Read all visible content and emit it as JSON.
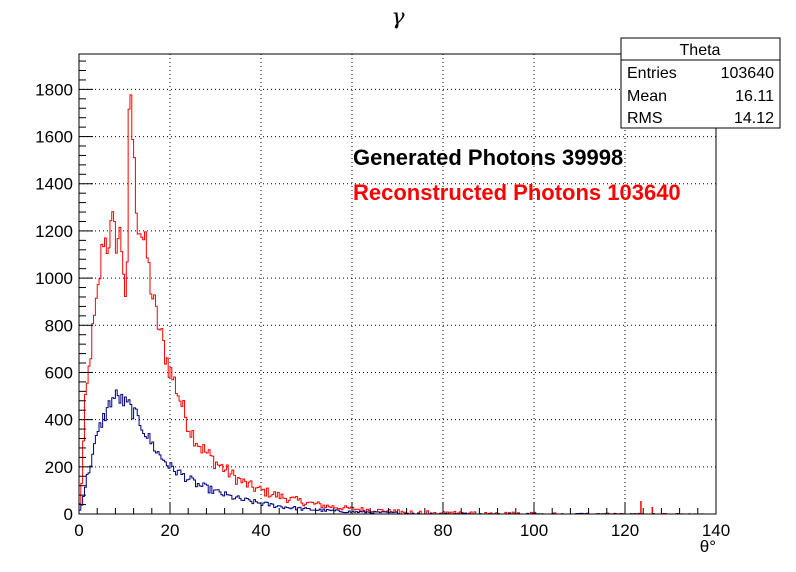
{
  "chart_data": {
    "type": "histogram",
    "title": "γ",
    "xlabel": "θ°",
    "ylabel": "",
    "xlim": [
      0,
      140
    ],
    "ylim": [
      0,
      1950
    ],
    "x_ticks": [
      0,
      20,
      40,
      60,
      80,
      100,
      120,
      140
    ],
    "y_ticks": [
      0,
      200,
      400,
      600,
      800,
      1000,
      1200,
      1400,
      1600,
      1800
    ],
    "grid": true,
    "bin_width": 0.4,
    "series": [
      {
        "name": "Reconstructed Photons 103640",
        "color": "#ff0000",
        "points": [
          [
            0,
            0
          ],
          [
            0.5,
            100
          ],
          [
            1,
            300
          ],
          [
            1.5,
            500
          ],
          [
            2,
            560
          ],
          [
            2.5,
            680
          ],
          [
            3,
            760
          ],
          [
            4,
            900
          ],
          [
            5,
            1100
          ],
          [
            5.5,
            1200
          ],
          [
            6,
            1130
          ],
          [
            7,
            1200
          ],
          [
            7.5,
            1230
          ],
          [
            8,
            1160
          ],
          [
            9,
            1180
          ],
          [
            9.5,
            1120
          ],
          [
            10,
            1000
          ],
          [
            10.5,
            850
          ],
          [
            11,
            1650
          ],
          [
            11.3,
            1840
          ],
          [
            11.8,
            1600
          ],
          [
            12.5,
            1350
          ],
          [
            13,
            1240
          ],
          [
            14,
            1180
          ],
          [
            15,
            1090
          ],
          [
            16,
            940
          ],
          [
            17,
            840
          ],
          [
            18,
            760
          ],
          [
            19,
            680
          ],
          [
            20,
            610
          ],
          [
            21,
            560
          ],
          [
            22,
            500
          ],
          [
            23,
            440
          ],
          [
            24,
            380
          ],
          [
            25,
            340
          ],
          [
            26,
            310
          ],
          [
            27,
            280
          ],
          [
            28,
            260
          ],
          [
            30,
            220
          ],
          [
            32,
            190
          ],
          [
            34,
            160
          ],
          [
            36,
            135
          ],
          [
            38,
            115
          ],
          [
            40,
            100
          ],
          [
            43,
            82
          ],
          [
            46,
            65
          ],
          [
            50,
            48
          ],
          [
            55,
            32
          ],
          [
            60,
            22
          ],
          [
            65,
            16
          ],
          [
            70,
            11
          ],
          [
            80,
            7
          ],
          [
            90,
            5
          ],
          [
            100,
            3
          ],
          [
            110,
            2
          ],
          [
            120,
            1
          ],
          [
            130,
            1
          ],
          [
            140,
            0
          ]
        ],
        "spikes": [
          [
            123.5,
            55
          ],
          [
            126,
            30
          ]
        ]
      },
      {
        "name": "Generated Photons 39998",
        "color": "#000080",
        "points": [
          [
            0,
            0
          ],
          [
            0.5,
            40
          ],
          [
            1,
            80
          ],
          [
            1.5,
            130
          ],
          [
            2,
            170
          ],
          [
            3,
            250
          ],
          [
            4,
            330
          ],
          [
            5,
            390
          ],
          [
            6,
            430
          ],
          [
            7,
            480
          ],
          [
            8,
            500
          ],
          [
            9,
            490
          ],
          [
            10,
            470
          ],
          [
            11,
            460
          ],
          [
            12,
            430
          ],
          [
            13,
            400
          ],
          [
            14,
            370
          ],
          [
            15,
            330
          ],
          [
            16,
            300
          ],
          [
            17,
            270
          ],
          [
            18,
            240
          ],
          [
            19,
            225
          ],
          [
            20,
            200
          ],
          [
            22,
            175
          ],
          [
            24,
            150
          ],
          [
            26,
            125
          ],
          [
            28,
            110
          ],
          [
            30,
            95
          ],
          [
            33,
            75
          ],
          [
            36,
            60
          ],
          [
            40,
            45
          ],
          [
            45,
            30
          ],
          [
            50,
            20
          ],
          [
            55,
            14
          ],
          [
            60,
            9
          ],
          [
            70,
            5
          ],
          [
            80,
            3
          ],
          [
            90,
            2
          ],
          [
            100,
            1
          ],
          [
            120,
            1
          ],
          [
            140,
            0
          ]
        ]
      }
    ]
  },
  "stats_box": {
    "name": "Theta",
    "entries_label": "Entries",
    "entries_value": "103640",
    "mean_label": "Mean",
    "mean_value": "16.11",
    "rms_label": "RMS",
    "rms_value": "14.12"
  },
  "legend": {
    "generated_text": "Generated Photons 39998",
    "generated_color": "#000000",
    "reconstructed_text": "Reconstructed Photons 103640",
    "reconstructed_color": "#ff0000"
  }
}
